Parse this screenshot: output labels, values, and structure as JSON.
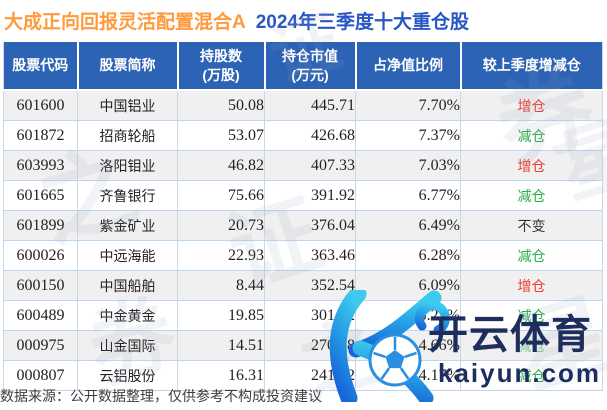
{
  "title": {
    "fund": "大成正向回报灵活配置混合A",
    "period": "2024年三季度十大重仓股"
  },
  "table": {
    "headers": [
      {
        "line1": "股票代码",
        "line2": ""
      },
      {
        "line1": "股票简称",
        "line2": ""
      },
      {
        "line1": "持股数",
        "line2": "(万股)"
      },
      {
        "line1": "持仓市值",
        "line2": "(万元)"
      },
      {
        "line1": "占净值比例",
        "line2": ""
      },
      {
        "line1": "较上季度增减仓",
        "line2": ""
      }
    ],
    "rows": [
      {
        "code": "601600",
        "name": "中国铝业",
        "shares": "50.08",
        "value": "445.71",
        "pct": "7.70%",
        "change": "增仓",
        "change_type": "increase"
      },
      {
        "code": "601872",
        "name": "招商轮船",
        "shares": "53.07",
        "value": "426.68",
        "pct": "7.37%",
        "change": "减仓",
        "change_type": "decrease"
      },
      {
        "code": "603993",
        "name": "洛阳钼业",
        "shares": "46.82",
        "value": "407.33",
        "pct": "7.03%",
        "change": "增仓",
        "change_type": "increase"
      },
      {
        "code": "601665",
        "name": "齐鲁银行",
        "shares": "75.66",
        "value": "391.92",
        "pct": "6.77%",
        "change": "减仓",
        "change_type": "decrease"
      },
      {
        "code": "601899",
        "name": "紫金矿业",
        "shares": "20.73",
        "value": "376.04",
        "pct": "6.49%",
        "change": "不变",
        "change_type": "unchanged"
      },
      {
        "code": "600026",
        "name": "中远海能",
        "shares": "22.93",
        "value": "363.46",
        "pct": "6.28%",
        "change": "减仓",
        "change_type": "decrease"
      },
      {
        "code": "600150",
        "name": "中国船舶",
        "shares": "8.44",
        "value": "352.54",
        "pct": "6.09%",
        "change": "增仓",
        "change_type": "increase"
      },
      {
        "code": "600489",
        "name": "中金黄金",
        "shares": "19.85",
        "value": "301.72",
        "pct": "5.21%",
        "change": "减仓",
        "change_type": "decrease"
      },
      {
        "code": "000975",
        "name": "山金国际",
        "shares": "14.51",
        "value": "270.08",
        "pct": "4.66%",
        "change": "减仓",
        "change_type": "decrease"
      },
      {
        "code": "000807",
        "name": "云铝股份",
        "shares": "16.31",
        "value": "241.42",
        "pct": "4.17%",
        "change": "减仓",
        "change_type": "decrease"
      }
    ]
  },
  "footer": {
    "note": "数据来源：公开数据整理，仅供参考不构成投资建议"
  },
  "watermark": {
    "brand": "开云体育",
    "domain": "kaiyun.com",
    "background_text": "证券之星"
  },
  "colors": {
    "header_bg": "#2d63b5",
    "increase": "#ef3a2e",
    "decrease": "#2aad4a",
    "unchanged": "#333333",
    "title_fund": "#ff9a3d",
    "title_period": "#2857c5",
    "brand_navy": "#1d2e5e"
  }
}
